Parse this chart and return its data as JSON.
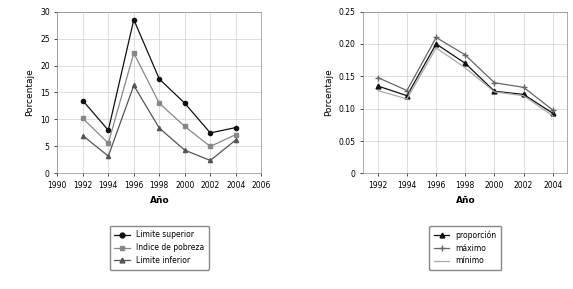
{
  "left": {
    "years": [
      1992,
      1994,
      1996,
      1998,
      2000,
      2002,
      2004
    ],
    "limite_superior": [
      13.5,
      8.0,
      28.5,
      17.5,
      13.0,
      7.5,
      8.5
    ],
    "indice_pobreza": [
      10.2,
      5.6,
      22.3,
      13.0,
      8.7,
      5.0,
      7.2
    ],
    "limite_inferior": [
      7.0,
      3.2,
      16.3,
      8.4,
      4.3,
      2.4,
      6.2
    ],
    "xlim": [
      1990,
      2006
    ],
    "ylim": [
      0,
      30
    ],
    "yticks": [
      0,
      5,
      10,
      15,
      20,
      25,
      30
    ],
    "xticks": [
      1990,
      1992,
      1994,
      1996,
      1998,
      2000,
      2002,
      2004,
      2006
    ],
    "xlabel": "Año",
    "ylabel": "Porcentaje",
    "legend": [
      "Limite superior",
      "Indice de pobreza",
      "Limite inferior"
    ]
  },
  "right": {
    "years": [
      1992,
      1994,
      1996,
      1998,
      2000,
      2002,
      2004
    ],
    "proporcion": [
      0.135,
      0.12,
      0.2,
      0.17,
      0.127,
      0.122,
      0.093
    ],
    "maximo": [
      0.148,
      0.128,
      0.21,
      0.183,
      0.14,
      0.133,
      0.098
    ],
    "minimo": [
      0.128,
      0.115,
      0.194,
      0.163,
      0.126,
      0.12,
      0.089
    ],
    "xlim": [
      1991,
      2005
    ],
    "ylim": [
      0,
      0.25
    ],
    "yticks": [
      0,
      0.05,
      0.1,
      0.15,
      0.2,
      0.25
    ],
    "xticks": [
      1992,
      1994,
      1996,
      1998,
      2000,
      2002,
      2004
    ],
    "xlabel": "Año",
    "ylabel": "Porcentaje",
    "legend": [
      "proporción",
      "máximo",
      "mínimo"
    ]
  },
  "fig_bg": "#ffffff",
  "plot_bg": "#ffffff",
  "grid_color": "#d0d0d0",
  "figsize": [
    5.73,
    2.89
  ],
  "dpi": 100
}
